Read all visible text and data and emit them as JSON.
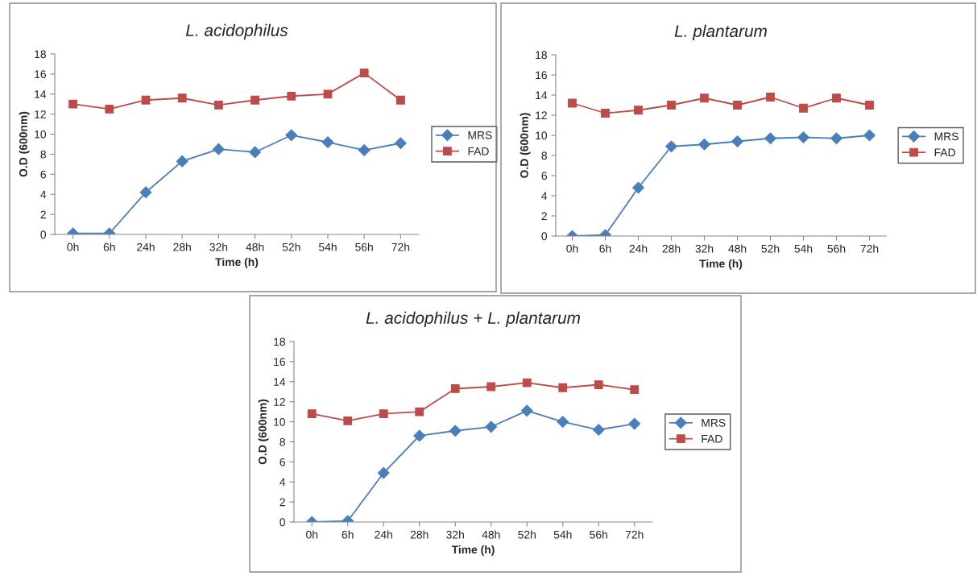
{
  "chart_data": [
    {
      "type": "line",
      "title": "L. acidophilus",
      "xlabel": "Time (h)",
      "ylabel": "O.D (600nm)",
      "categories": [
        "0h",
        "6h",
        "24h",
        "28h",
        "32h",
        "48h",
        "52h",
        "54h",
        "56h",
        "72h"
      ],
      "ylim": [
        0,
        18
      ],
      "yticks": [
        0,
        2,
        4,
        6,
        8,
        10,
        12,
        14,
        16,
        18
      ],
      "grid": false,
      "legend": "right",
      "series": [
        {
          "name": "MRS",
          "color": "#4a7ebb",
          "marker": "diamond",
          "values": [
            0.1,
            0.1,
            4.2,
            7.3,
            8.5,
            8.2,
            9.9,
            9.2,
            8.4,
            9.1
          ]
        },
        {
          "name": "FAD",
          "color": "#be4b48",
          "marker": "square",
          "values": [
            13.0,
            12.5,
            13.4,
            13.6,
            12.9,
            13.4,
            13.8,
            14.0,
            16.1,
            13.4
          ]
        }
      ]
    },
    {
      "type": "line",
      "title": "L. plantarum",
      "xlabel": "Time (h)",
      "ylabel": "O.D (600nm)",
      "categories": [
        "0h",
        "6h",
        "24h",
        "28h",
        "32h",
        "48h",
        "52h",
        "54h",
        "56h",
        "72h"
      ],
      "ylim": [
        0,
        18
      ],
      "yticks": [
        0,
        2,
        4,
        6,
        8,
        10,
        12,
        14,
        16,
        18
      ],
      "grid": false,
      "legend": "right",
      "series": [
        {
          "name": "MRS",
          "color": "#4a7ebb",
          "marker": "diamond",
          "values": [
            0.0,
            0.1,
            4.8,
            8.9,
            9.1,
            9.4,
            9.7,
            9.8,
            9.7,
            10.0
          ]
        },
        {
          "name": "FAD",
          "color": "#be4b48",
          "marker": "square",
          "values": [
            13.2,
            12.2,
            12.5,
            13.0,
            13.7,
            13.0,
            13.8,
            12.7,
            13.7,
            13.0
          ]
        }
      ]
    },
    {
      "type": "line",
      "title": "L. acidophilus + L. plantarum",
      "xlabel": "Time (h)",
      "ylabel": "O.D (600nm)",
      "categories": [
        "0h",
        "6h",
        "24h",
        "28h",
        "32h",
        "48h",
        "52h",
        "54h",
        "56h",
        "72h"
      ],
      "ylim": [
        0,
        18
      ],
      "yticks": [
        0,
        2,
        4,
        6,
        8,
        10,
        12,
        14,
        16,
        18
      ],
      "grid": false,
      "legend": "right",
      "series": [
        {
          "name": "MRS",
          "color": "#4a7ebb",
          "marker": "diamond",
          "values": [
            0.0,
            0.1,
            4.9,
            8.6,
            9.1,
            9.5,
            11.1,
            10.0,
            9.2,
            9.8
          ]
        },
        {
          "name": "FAD",
          "color": "#be4b48",
          "marker": "square",
          "values": [
            10.8,
            10.1,
            10.8,
            11.0,
            13.3,
            13.5,
            13.9,
            13.4,
            13.7,
            13.2
          ]
        }
      ]
    }
  ]
}
